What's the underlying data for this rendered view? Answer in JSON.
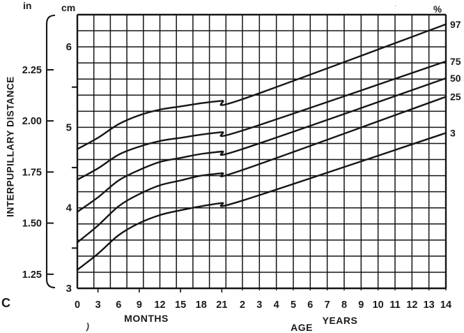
{
  "figure_label": "C",
  "artifacts": {
    "below_months_mark": ")",
    "top_right_dots": ". ."
  },
  "chart_data": {
    "type": "line",
    "x_axis": {
      "label": "AGE",
      "sections": [
        {
          "name": "MONTHS",
          "ticks": [
            0,
            3,
            6,
            9,
            12,
            15,
            18,
            21
          ],
          "range": [
            0,
            24
          ],
          "grid_step_months": 2.4
        },
        {
          "name": "YEARS",
          "ticks": [
            2,
            3,
            4,
            5,
            6,
            7,
            8,
            9,
            10,
            11,
            12,
            13,
            14
          ],
          "range": [
            2,
            14
          ],
          "grid_step_years": 1
        }
      ]
    },
    "y_axis": {
      "label": "INTERPUPILLARY DISTANCE",
      "units": [
        {
          "name": "in",
          "ticks": [
            "1.25",
            "1.50",
            "1.75",
            "2.00",
            "2.25"
          ]
        },
        {
          "name": "cm",
          "ticks": [
            3,
            4,
            5,
            6
          ],
          "minor_ticks": [
            3.5,
            4.5,
            5.5
          ],
          "range": [
            3.0,
            6.4
          ],
          "grid_step_cm": 0.2
        }
      ]
    },
    "legend": {
      "header": "%",
      "position": "right",
      "entries": [
        "97",
        "75",
        "50",
        "25",
        "3"
      ]
    },
    "grid": true,
    "line_color": "#151515",
    "background": "#ffffff",
    "series": [
      {
        "name": "97",
        "points_months_cm": [
          [
            0,
            4.73
          ],
          [
            3,
            4.87
          ],
          [
            6,
            5.04
          ],
          [
            9,
            5.15
          ],
          [
            12,
            5.22
          ],
          [
            15,
            5.26
          ],
          [
            18,
            5.3
          ],
          [
            21,
            5.33
          ],
          [
            24,
            5.35
          ]
        ],
        "points_years_cm": [
          [
            2,
            5.35
          ],
          [
            14,
            6.28
          ]
        ]
      },
      {
        "name": "75",
        "points_months_cm": [
          [
            0,
            4.35
          ],
          [
            3,
            4.49
          ],
          [
            6,
            4.66
          ],
          [
            9,
            4.76
          ],
          [
            12,
            4.83
          ],
          [
            15,
            4.87
          ],
          [
            18,
            4.91
          ],
          [
            21,
            4.94
          ],
          [
            24,
            4.96
          ]
        ],
        "points_years_cm": [
          [
            2,
            4.96
          ],
          [
            14,
            5.82
          ]
        ]
      },
      {
        "name": "50",
        "points_months_cm": [
          [
            0,
            3.95
          ],
          [
            3,
            4.13
          ],
          [
            6,
            4.34
          ],
          [
            9,
            4.47
          ],
          [
            12,
            4.57
          ],
          [
            15,
            4.62
          ],
          [
            18,
            4.67
          ],
          [
            21,
            4.7
          ],
          [
            24,
            4.73
          ]
        ],
        "points_years_cm": [
          [
            2,
            4.73
          ],
          [
            14,
            5.61
          ]
        ]
      },
      {
        "name": "25",
        "points_months_cm": [
          [
            0,
            3.57
          ],
          [
            3,
            3.78
          ],
          [
            6,
            4.02
          ],
          [
            9,
            4.17
          ],
          [
            12,
            4.28
          ],
          [
            15,
            4.34
          ],
          [
            18,
            4.4
          ],
          [
            21,
            4.43
          ],
          [
            24,
            4.47
          ]
        ],
        "points_years_cm": [
          [
            2,
            4.47
          ],
          [
            14,
            5.38
          ]
        ]
      },
      {
        "name": "3",
        "points_months_cm": [
          [
            0,
            3.23
          ],
          [
            3,
            3.43
          ],
          [
            6,
            3.66
          ],
          [
            9,
            3.81
          ],
          [
            12,
            3.91
          ],
          [
            15,
            3.97
          ],
          [
            18,
            4.02
          ],
          [
            21,
            4.06
          ],
          [
            24,
            4.09
          ]
        ],
        "points_years_cm": [
          [
            2,
            4.09
          ],
          [
            14,
            4.93
          ]
        ]
      }
    ]
  }
}
